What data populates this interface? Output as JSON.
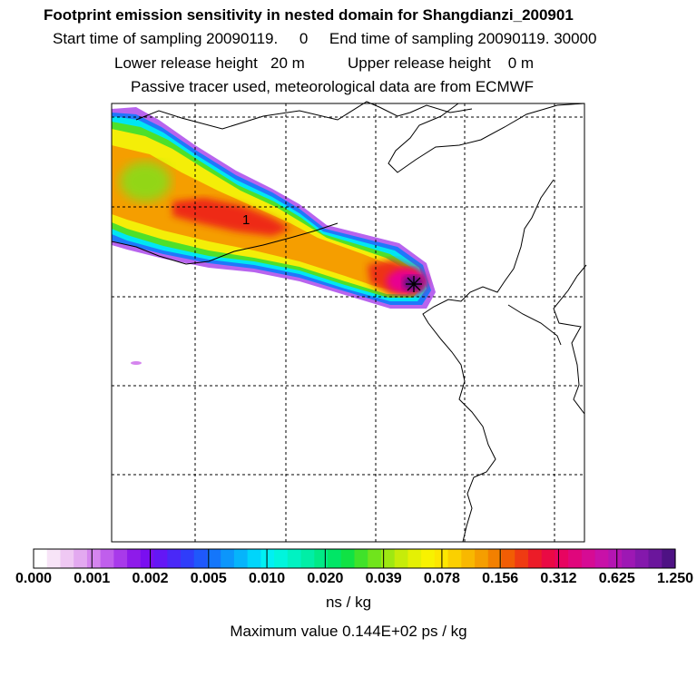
{
  "header": {
    "title": "Footprint emission sensitivity in nested domain for Shangdianzi_200901",
    "sampling": "Start time of sampling 20090119.     0     End time of sampling 20090119. 30000",
    "release": "Lower release height   20 m          Upper release height    0 m",
    "tracer": "Passive tracer used, meteorological data are from ECMWF"
  },
  "map": {
    "contour_label": "1",
    "receptor_marker": "receptor-star"
  },
  "colorbar": {
    "ticks": [
      "0.000",
      "0.001",
      "0.002",
      "0.005",
      "0.010",
      "0.020",
      "0.039",
      "0.078",
      "0.156",
      "0.312",
      "0.625",
      "1.250"
    ],
    "colors": [
      "#ffffff",
      "#f7e4f7",
      "#efc8f3",
      "#e3a9f0",
      "#d585ee",
      "#c05eec",
      "#a83aea",
      "#8e1bea",
      "#7a0ff0",
      "#6417f5",
      "#4a28f7",
      "#2f3dfa",
      "#1f58fb",
      "#1476fb",
      "#0c96fb",
      "#06b4fb",
      "#00d5fb",
      "#00f0f3",
      "#00f5dd",
      "#00f2c2",
      "#00eea6",
      "#00ea86",
      "#00e666",
      "#10e244",
      "#40e22a",
      "#70e41c",
      "#9ee812",
      "#c6ec0a",
      "#e4f004",
      "#f8f200",
      "#fde600",
      "#fbd000",
      "#f8b800",
      "#f59e00",
      "#f38000",
      "#f15d04",
      "#ef3b12",
      "#ec1c28",
      "#ea0a44",
      "#e80460",
      "#e0067c",
      "#d60b94",
      "#c811a8",
      "#b415b2",
      "#9d18b4",
      "#8418ac",
      "#6b169c",
      "#4e1284"
    ],
    "units": "ns / kg"
  },
  "footer": {
    "maximum": "Maximum value  0.144E+02 ps / kg"
  },
  "colors": {
    "frame": "#000000",
    "coastline": "#000000",
    "gridline": "#000000",
    "plume_outer": "#c27aee",
    "plume_core": "#ff1e2a",
    "hotspot": "#4e1284"
  }
}
